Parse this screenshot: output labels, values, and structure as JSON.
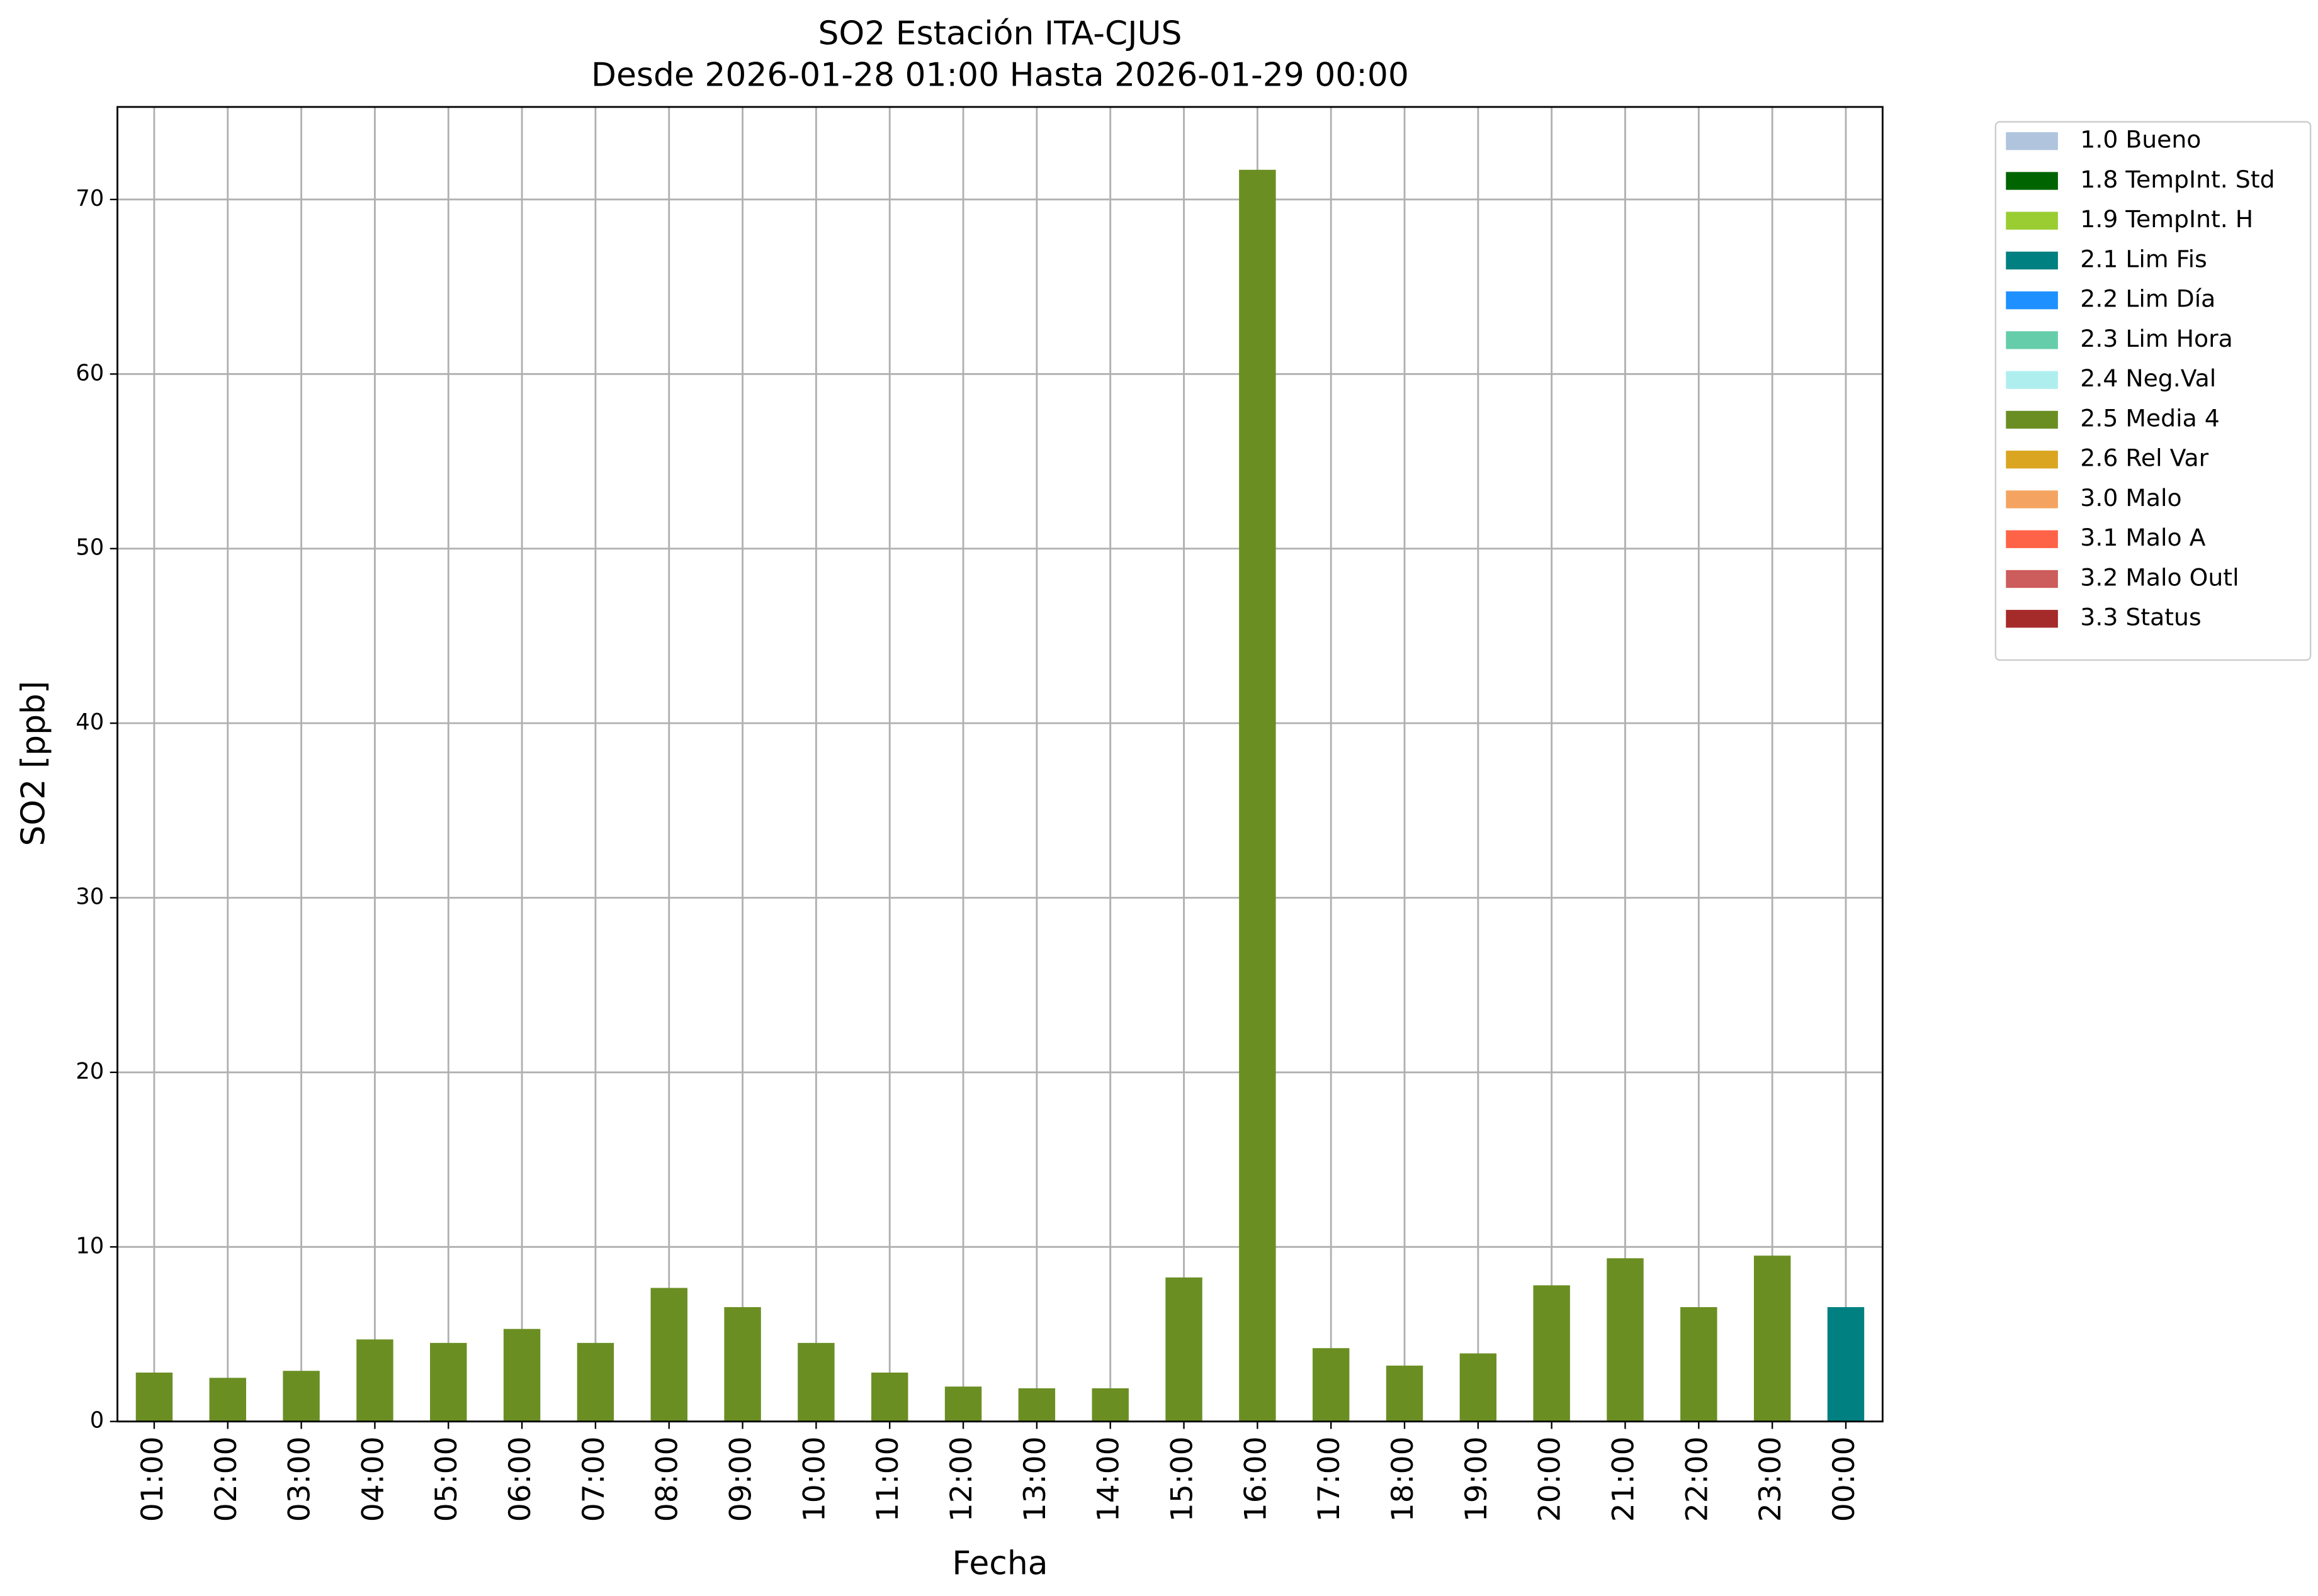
{
  "chart_data": {
    "type": "stacked_bar",
    "title": "SO2 Estación ITA-CJUS",
    "subtitle": "Desde 2026-01-28 01:00 Hasta 2026-01-29 00:00",
    "x_label": "Fecha",
    "y_label": "SO2 [ppb]",
    "categories": [
      "01:00",
      "02:00",
      "03:00",
      "04:00",
      "05:00",
      "06:00",
      "07:00",
      "08:00",
      "09:00",
      "10:00",
      "11:00",
      "12:00",
      "13:00",
      "14:00",
      "15:00",
      "16:00",
      "17:00",
      "18:00",
      "19:00",
      "20:00",
      "21:00",
      "22:00",
      "23:00",
      "00:00"
    ],
    "series": [
      {
        "name": "1.0 Bueno",
        "color": "#b0c4de",
        "values": [
          null,
          null,
          null,
          null,
          null,
          null,
          null,
          null,
          null,
          null,
          null,
          null,
          null,
          null,
          null,
          null,
          null,
          null,
          null,
          null,
          null,
          null,
          null,
          null
        ]
      },
      {
        "name": "1.8 TempInt. Std",
        "color": "#006400",
        "values": [
          null,
          null,
          null,
          null,
          null,
          null,
          null,
          null,
          null,
          null,
          null,
          null,
          null,
          null,
          null,
          null,
          null,
          null,
          null,
          null,
          null,
          null,
          null,
          null
        ]
      },
      {
        "name": "1.9 TempInt. H",
        "color": "#9acd32",
        "values": [
          null,
          null,
          null,
          null,
          null,
          null,
          null,
          null,
          null,
          null,
          null,
          null,
          null,
          null,
          null,
          null,
          null,
          null,
          null,
          null,
          null,
          null,
          null,
          null
        ]
      },
      {
        "name": "2.1 Lim Fis",
        "color": "#008080",
        "values": [
          null,
          null,
          null,
          null,
          null,
          null,
          null,
          null,
          null,
          null,
          null,
          null,
          null,
          null,
          null,
          null,
          null,
          null,
          null,
          null,
          null,
          null,
          null,
          6.55
        ]
      },
      {
        "name": "2.2 Lim Día",
        "color": "#1e90ff",
        "values": [
          null,
          null,
          null,
          null,
          null,
          null,
          null,
          null,
          null,
          null,
          null,
          null,
          null,
          null,
          null,
          null,
          null,
          null,
          null,
          null,
          null,
          null,
          null,
          null
        ]
      },
      {
        "name": "2.3 Lim Hora",
        "color": "#66cdaa",
        "values": [
          null,
          null,
          null,
          null,
          null,
          null,
          null,
          null,
          null,
          null,
          null,
          null,
          null,
          null,
          null,
          null,
          null,
          null,
          null,
          null,
          null,
          null,
          null,
          null
        ]
      },
      {
        "name": "2.4 Neg.Val",
        "color": "#afeeee",
        "values": [
          null,
          null,
          null,
          null,
          null,
          null,
          null,
          null,
          null,
          null,
          null,
          null,
          null,
          null,
          null,
          null,
          null,
          null,
          null,
          null,
          null,
          null,
          null,
          null
        ]
      },
      {
        "name": "2.5 Media 4",
        "color": "#6b8e23",
        "values": [
          2.8,
          2.5,
          2.9,
          4.7,
          4.5,
          5.3,
          4.5,
          7.65,
          6.55,
          4.5,
          2.8,
          2.0,
          1.9,
          1.9,
          8.25,
          71.7,
          4.2,
          3.2,
          3.9,
          7.8,
          9.35,
          6.55,
          9.5,
          null
        ]
      },
      {
        "name": "2.6 Rel Var",
        "color": "#daa520",
        "values": [
          null,
          null,
          null,
          null,
          null,
          null,
          null,
          null,
          null,
          null,
          null,
          null,
          null,
          null,
          null,
          null,
          null,
          null,
          null,
          null,
          null,
          null,
          null,
          null
        ]
      },
      {
        "name": "3.0 Malo",
        "color": "#f4a460",
        "values": [
          null,
          null,
          null,
          null,
          null,
          null,
          null,
          null,
          null,
          null,
          null,
          null,
          null,
          null,
          null,
          null,
          null,
          null,
          null,
          null,
          null,
          null,
          null,
          null
        ]
      },
      {
        "name": "3.1 Malo A",
        "color": "#ff6347",
        "values": [
          null,
          null,
          null,
          null,
          null,
          null,
          null,
          null,
          null,
          null,
          null,
          null,
          null,
          null,
          null,
          null,
          null,
          null,
          null,
          null,
          null,
          null,
          null,
          null
        ]
      },
      {
        "name": "3.2 Malo Outl",
        "color": "#cd5c5c",
        "values": [
          null,
          null,
          null,
          null,
          null,
          null,
          null,
          null,
          null,
          null,
          null,
          null,
          null,
          null,
          null,
          null,
          null,
          null,
          null,
          null,
          null,
          null,
          null,
          null
        ]
      },
      {
        "name": "3.3 Status",
        "color": "#a52a2a",
        "values": [
          null,
          null,
          null,
          null,
          null,
          null,
          null,
          null,
          null,
          null,
          null,
          null,
          null,
          null,
          null,
          null,
          null,
          null,
          null,
          null,
          null,
          null,
          null,
          null
        ]
      }
    ],
    "ylim": [
      0,
      75.3
    ],
    "yticks": [
      0,
      10,
      20,
      30,
      40,
      50,
      60,
      70
    ],
    "grid": true,
    "legend": "outside-right"
  }
}
